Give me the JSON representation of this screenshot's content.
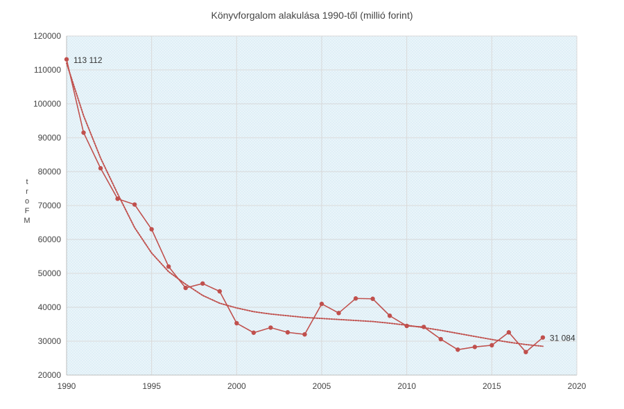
{
  "chart_data": {
    "type": "line",
    "title": "Könyvforgalom alakulása 1990-től (millió forint)",
    "ylabel_letters": [
      "t",
      "r",
      "o",
      "F",
      "M"
    ],
    "xlim": [
      1990,
      2020
    ],
    "ylim": [
      20000,
      120000
    ],
    "x_ticks": [
      1990,
      1995,
      2000,
      2005,
      2010,
      2015,
      2020
    ],
    "y_ticks": [
      20000,
      30000,
      40000,
      50000,
      60000,
      70000,
      80000,
      90000,
      100000,
      110000,
      120000
    ],
    "grid": true,
    "series": [
      {
        "color": "#c0504d",
        "x": [
          1990,
          1991,
          1992,
          1993,
          1994,
          1995,
          1996,
          1997,
          1998,
          1999,
          2000,
          2001,
          2002,
          2003,
          2004,
          2005,
          2006,
          2007,
          2008,
          2009,
          2010,
          2011,
          2012,
          2013,
          2014,
          2015,
          2016,
          2017,
          2018
        ],
        "y": [
          113112,
          91500,
          81000,
          72000,
          70300,
          63000,
          52000,
          45700,
          47000,
          44700,
          35300,
          32500,
          34000,
          32600,
          32000,
          41000,
          38300,
          42600,
          42500,
          37500,
          34500,
          34200,
          30600,
          27500,
          28300,
          28800,
          32600,
          26800,
          31084
        ]
      }
    ],
    "trendline": {
      "color": "#c0504d",
      "style": "dotted",
      "x": [
        1990,
        1991,
        1992,
        1993,
        1994,
        1995,
        1996,
        1997,
        1998,
        1999,
        2000,
        2001,
        2002,
        2003,
        2004,
        2005,
        2006,
        2007,
        2008,
        2009,
        2010,
        2011,
        2012,
        2013,
        2014,
        2015,
        2016,
        2017,
        2018
      ],
      "y": [
        112000,
        96500,
        84000,
        73500,
        63500,
        56000,
        50500,
        46800,
        43500,
        41200,
        39800,
        38700,
        38000,
        37500,
        37000,
        36700,
        36400,
        36100,
        35800,
        35300,
        34700,
        34000,
        33200,
        32300,
        31400,
        30500,
        29700,
        29000,
        28500
      ]
    },
    "data_labels": [
      {
        "x": 1990,
        "y": 113112,
        "text": "113 112"
      },
      {
        "x": 2018,
        "y": 31084,
        "text": "31 084"
      }
    ]
  }
}
